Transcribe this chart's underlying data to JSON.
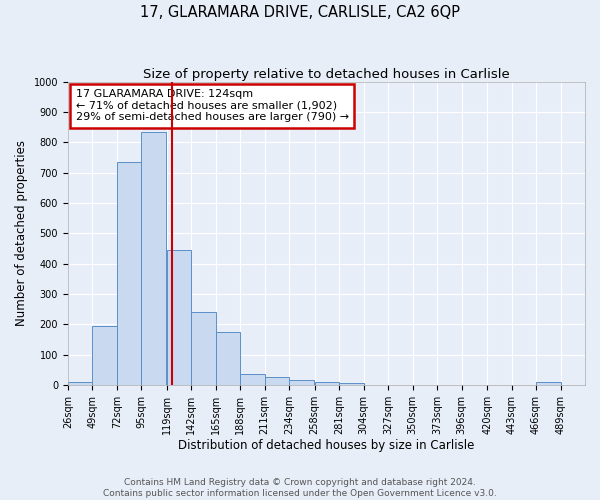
{
  "title": "17, GLARAMARA DRIVE, CARLISLE, CA2 6QP",
  "subtitle": "Size of property relative to detached houses in Carlisle",
  "xlabel": "Distribution of detached houses by size in Carlisle",
  "ylabel": "Number of detached properties",
  "footer_line1": "Contains HM Land Registry data © Crown copyright and database right 2024.",
  "footer_line2": "Contains public sector information licensed under the Open Government Licence v3.0.",
  "bar_edges": [
    26,
    49,
    72,
    95,
    119,
    142,
    165,
    188,
    211,
    234,
    258,
    281,
    304,
    327,
    350,
    373,
    396,
    420,
    443,
    466,
    489
  ],
  "bar_heights": [
    10,
    195,
    735,
    835,
    445,
    240,
    175,
    35,
    25,
    15,
    10,
    5,
    0,
    0,
    0,
    0,
    0,
    0,
    0,
    10,
    0
  ],
  "bar_color": "#c9d9f0",
  "bar_edge_color": "#5b8fc9",
  "vline_x": 124,
  "vline_color": "#cc0000",
  "annotation_text": "17 GLARAMARA DRIVE: 124sqm\n← 71% of detached houses are smaller (1,902)\n29% of semi-detached houses are larger (790) →",
  "annotation_box_color": "#ffffff",
  "annotation_box_edge_color": "#cc0000",
  "ylim": [
    0,
    1000
  ],
  "yticks": [
    0,
    100,
    200,
    300,
    400,
    500,
    600,
    700,
    800,
    900,
    1000
  ],
  "bg_color": "#e8eef8",
  "plot_bg_color": "#e8eef8",
  "tick_labels": [
    "26sqm",
    "49sqm",
    "72sqm",
    "95sqm",
    "119sqm",
    "142sqm",
    "165sqm",
    "188sqm",
    "211sqm",
    "234sqm",
    "258sqm",
    "281sqm",
    "304sqm",
    "327sqm",
    "350sqm",
    "373sqm",
    "396sqm",
    "420sqm",
    "443sqm",
    "466sqm",
    "489sqm"
  ],
  "title_fontsize": 10.5,
  "subtitle_fontsize": 9.5,
  "axis_label_fontsize": 8.5,
  "tick_fontsize": 7,
  "annotation_fontsize": 8,
  "footer_fontsize": 6.5
}
